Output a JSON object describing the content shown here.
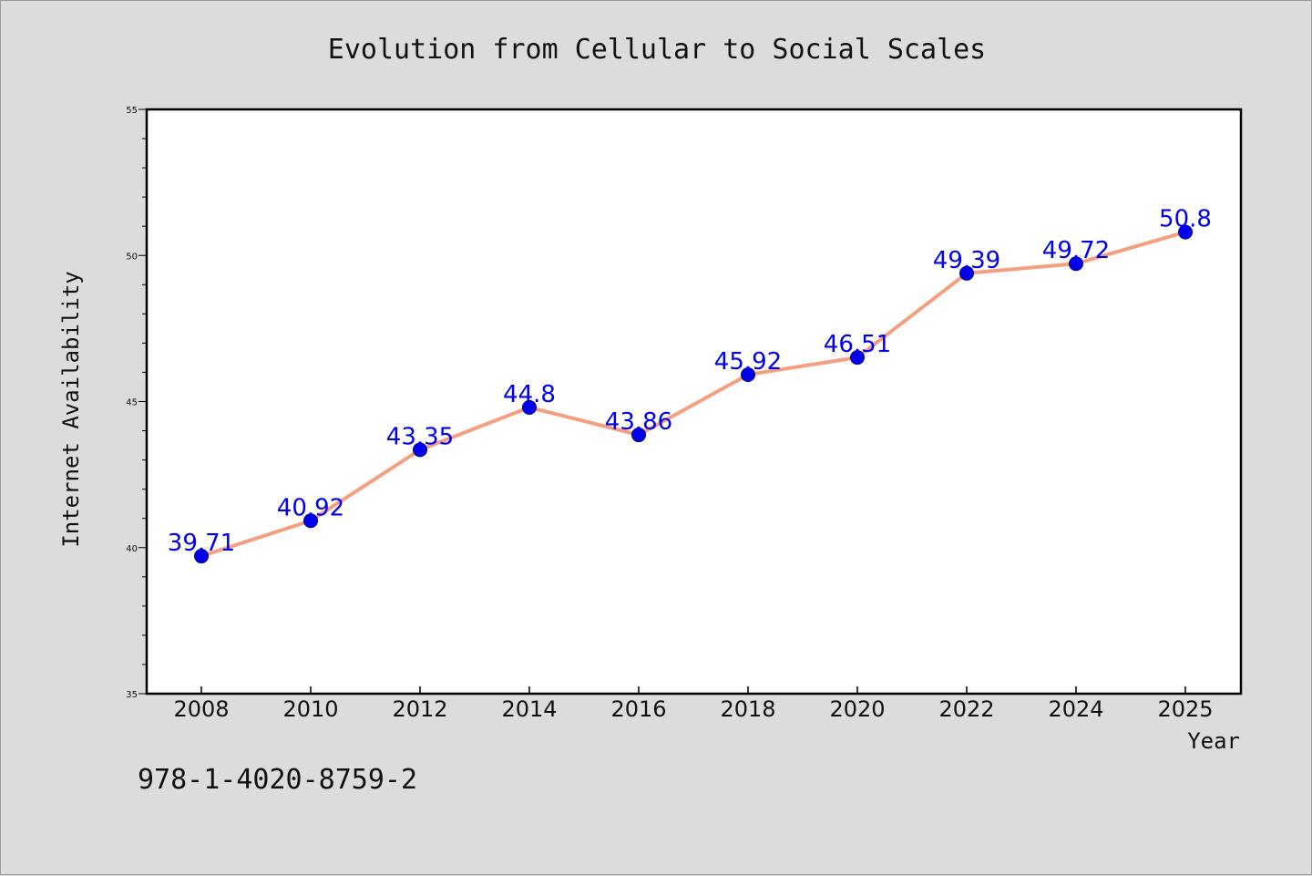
{
  "chart_data": {
    "type": "line",
    "title": "Evolution from Cellular to Social Scales",
    "xlabel": "Year",
    "ylabel": "Internet Availability",
    "categories": [
      "2008",
      "2010",
      "2012",
      "2014",
      "2016",
      "2018",
      "2020",
      "2022",
      "2024",
      "2025"
    ],
    "series": [
      {
        "values": [
          39.71,
          40.92,
          43.35,
          44.8,
          43.86,
          45.92,
          46.51,
          49.39,
          49.72,
          50.8
        ]
      }
    ],
    "data_labels": [
      "39.71",
      "40.92",
      "43.35",
      "44.8",
      "43.86",
      "45.92",
      "46.51",
      "49.39",
      "49.72",
      "50.8"
    ],
    "ylim": [
      35,
      55
    ],
    "yticks": [
      35,
      40,
      45,
      50,
      55
    ],
    "grid": false,
    "line_color": "#f4a080",
    "marker_color": "#0000ee",
    "label_color": "#0000ee"
  },
  "footer": {
    "isbn": "978-1-4020-8759-2"
  }
}
